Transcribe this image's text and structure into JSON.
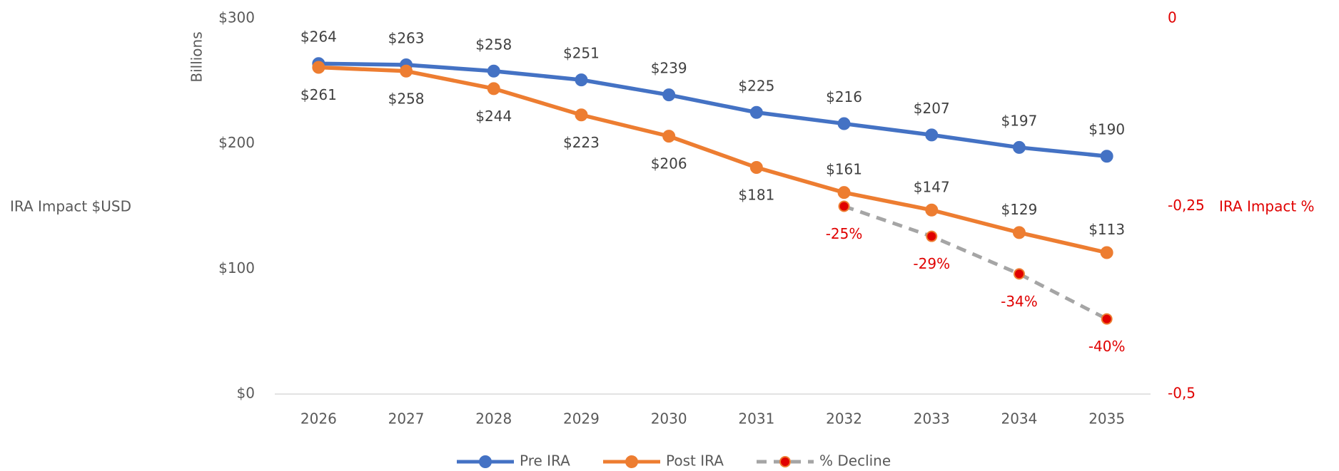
{
  "chart_data": {
    "type": "line",
    "y_label": "IRA Impact $USD",
    "y_unit_label": "Billions",
    "y2_label": "IRA Impact %",
    "categories": [
      "2026",
      "2027",
      "2028",
      "2029",
      "2030",
      "2031",
      "2032",
      "2033",
      "2034",
      "2035"
    ],
    "series": [
      {
        "name": "Pre IRA",
        "color": "#4472c4",
        "values": [
          264,
          263,
          258,
          251,
          239,
          225,
          216,
          207,
          197,
          190
        ],
        "value_labels": [
          "$264",
          "$263",
          "$258",
          "$251",
          "$239",
          "$225",
          "$216",
          "$207",
          "$197",
          "$190"
        ]
      },
      {
        "name": "Post IRA",
        "color": "#ed7d31",
        "values": [
          261,
          258,
          244,
          223,
          206,
          181,
          161,
          147,
          129,
          113
        ],
        "value_labels": [
          "$261",
          "$258",
          "$244",
          "$223",
          "$206",
          "$181",
          "$161",
          "$147",
          "$129",
          "$113"
        ]
      },
      {
        "name": "% Decline",
        "color": "#a5a5a5",
        "marker_color": "#e00000",
        "axis": "y2",
        "dashed": true,
        "values": [
          null,
          null,
          null,
          null,
          null,
          null,
          -0.25,
          -0.29,
          -0.34,
          -0.4
        ],
        "value_labels": [
          null,
          null,
          null,
          null,
          null,
          null,
          "-25%",
          "-29%",
          "-34%",
          "-40%"
        ]
      }
    ],
    "ylim": [
      0,
      300
    ],
    "yticks": [
      {
        "value": 0,
        "label": "$0"
      },
      {
        "value": 100,
        "label": "$100"
      },
      {
        "value": 200,
        "label": "$200"
      },
      {
        "value": 300,
        "label": "$300"
      }
    ],
    "y2lim": [
      -0.5,
      0
    ],
    "y2ticks": [
      {
        "value": -0.5,
        "label": "-0,5"
      },
      {
        "value": -0.25,
        "label": "-0,25"
      },
      0
    ],
    "grid": false,
    "legend": "bottom"
  }
}
